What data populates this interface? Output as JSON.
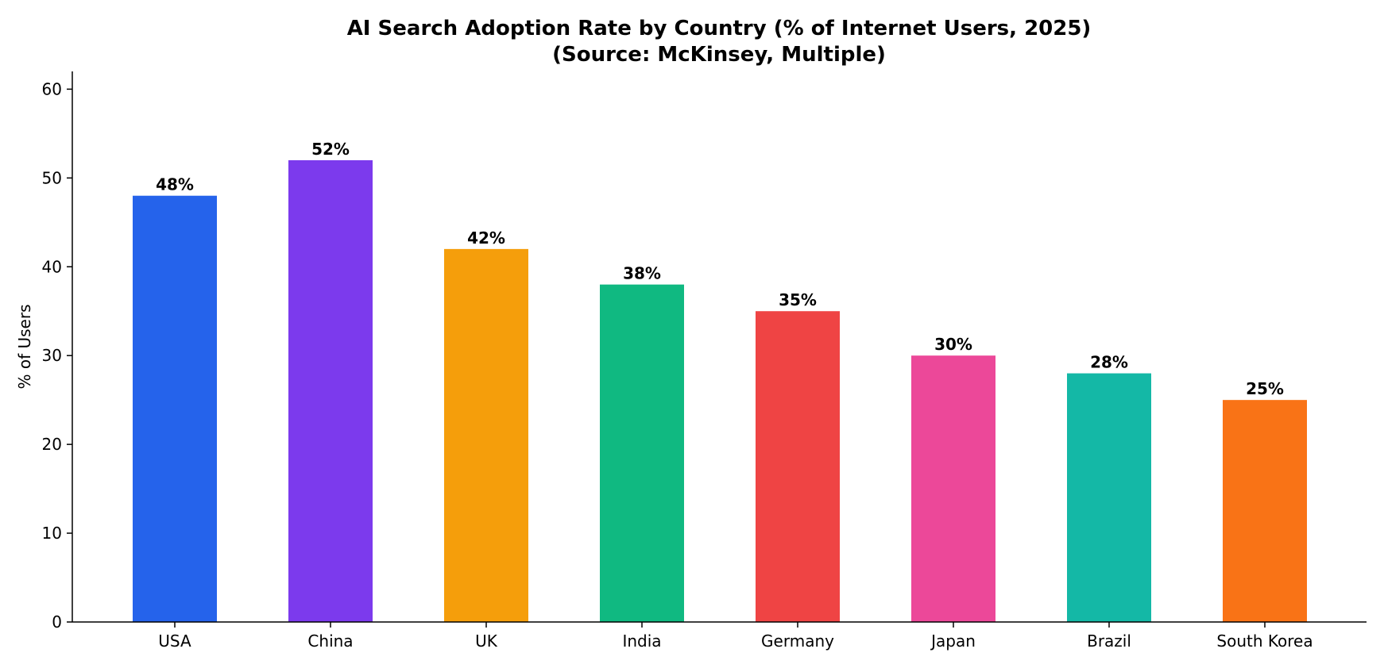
{
  "chart_data": {
    "type": "bar",
    "title": "AI Search Adoption Rate by Country (% of Internet Users, 2025)",
    "subtitle": "(Source: McKinsey, Multiple)",
    "xlabel": "",
    "ylabel": "% of Users",
    "ylim": [
      0,
      62
    ],
    "yticks": [
      0,
      10,
      20,
      30,
      40,
      50,
      60
    ],
    "grid": false,
    "categories": [
      "USA",
      "China",
      "UK",
      "India",
      "Germany",
      "Japan",
      "Brazil",
      "South Korea"
    ],
    "values": [
      48,
      52,
      42,
      38,
      35,
      30,
      28,
      25
    ],
    "data_labels": [
      "48%",
      "52%",
      "42%",
      "38%",
      "35%",
      "30%",
      "28%",
      "25%"
    ],
    "colors": [
      "#2563eb",
      "#7c3aed",
      "#f59e0b",
      "#10b981",
      "#ef4444",
      "#ec4899",
      "#14b8a6",
      "#f97316"
    ]
  }
}
